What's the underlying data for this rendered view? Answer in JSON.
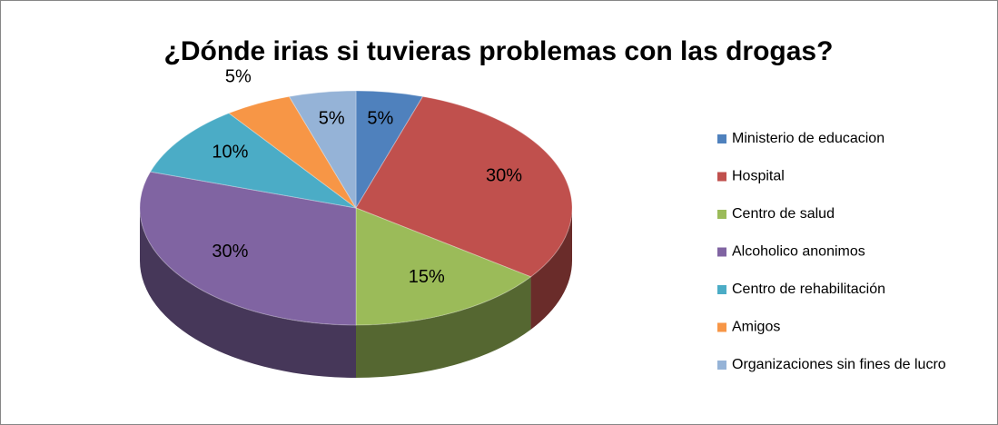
{
  "chart_data": {
    "type": "pie",
    "title": "¿Dónde irias si tuvieras problemas con las drogas?",
    "categories": [
      "Ministerio de educacion",
      "Hospital",
      "Centro de salud",
      "Alcoholico anonimos",
      "Centro de rehabilitación",
      "Amigos",
      "Organizaciones sin fines de lucro"
    ],
    "values": [
      5,
      30,
      15,
      30,
      10,
      5,
      5
    ],
    "value_labels": [
      "5%",
      "30%",
      "15%",
      "30%",
      "10%",
      "5%",
      "5%"
    ],
    "colors": [
      "#4f81bd",
      "#c0504d",
      "#9bbb59",
      "#8064a2",
      "#4bacc6",
      "#f79646",
      "#95b3d7"
    ],
    "legend": "right"
  }
}
